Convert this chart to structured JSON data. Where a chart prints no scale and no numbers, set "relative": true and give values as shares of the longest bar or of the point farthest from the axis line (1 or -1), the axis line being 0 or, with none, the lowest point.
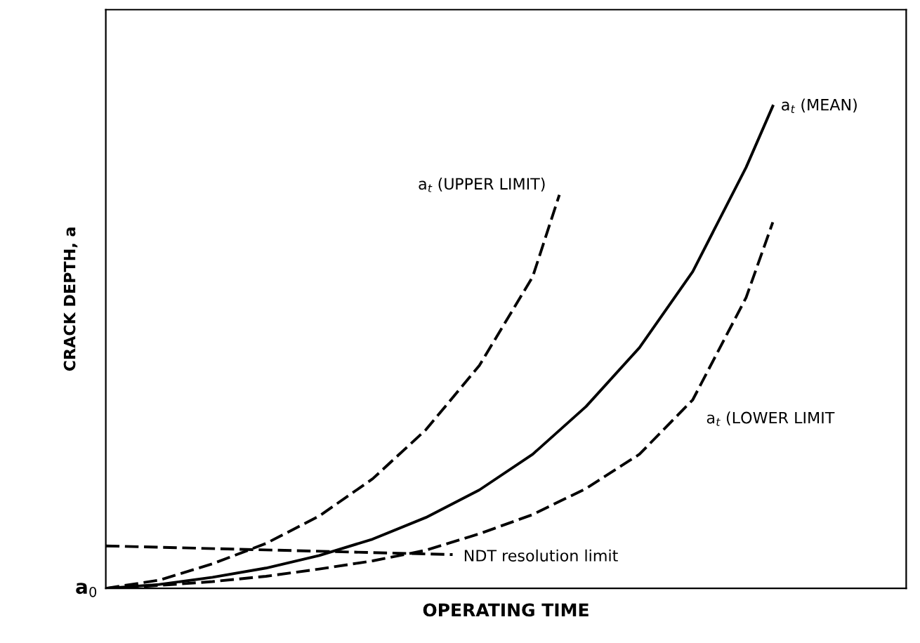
{
  "chart_data": {
    "type": "line",
    "xlabel": "OPERATING TIME",
    "ylabel": "CRACK DEPTH, a",
    "relative": true,
    "categories": [
      null,
      null,
      null,
      null,
      null,
      null,
      null,
      null,
      null,
      null,
      null,
      null,
      null,
      null,
      null,
      null,
      null,
      null,
      null,
      null,
      null,
      null,
      null,
      null,
      null,
      null,
      null,
      null
    ],
    "series": [
      {
        "name": "a$_{t}$ (MEAN)",
        "color": "#000000",
        "line_style": "solid",
        "values": [
          0,
          null,
          0.008,
          null,
          0.023,
          null,
          0.042,
          null,
          0.068,
          null,
          0.102,
          null,
          0.147,
          null,
          0.204,
          null,
          0.278,
          null,
          0.377,
          null,
          0.499,
          null,
          0.657,
          null,
          0.873,
          1.0,
          null,
          null
        ]
      },
      {
        "name": "a$_{t}$ (UPPER LIMIT)",
        "color": "#000000",
        "line_style": "dashed",
        "values": [
          0,
          null,
          0.017,
          null,
          0.051,
          null,
          0.093,
          null,
          0.15,
          null,
          0.227,
          null,
          0.329,
          null,
          0.462,
          null,
          0.646,
          0.816,
          null,
          null,
          null,
          null,
          null,
          null,
          null,
          null,
          null,
          null
        ]
      },
      {
        "name": "a$_{t}$ (LOWER LIMIT",
        "color": "#000000",
        "line_style": "dashed",
        "values": [
          0,
          null,
          0.006,
          null,
          0.014,
          null,
          0.025,
          null,
          0.04,
          null,
          0.057,
          null,
          0.079,
          null,
          0.113,
          null,
          0.153,
          null,
          0.207,
          null,
          0.278,
          null,
          0.391,
          null,
          0.603,
          0.759,
          null,
          null
        ]
      },
      {
        "name": "NDT resolution limit",
        "color": "#000000",
        "line_style": "dashed",
        "values": [
          0.088,
          null,
          null,
          null,
          null,
          null,
          null,
          null,
          null,
          null,
          null,
          null,
          null,
          0.07,
          null,
          null,
          null,
          null,
          null,
          null,
          null,
          null,
          null,
          null,
          null,
          null,
          null,
          null
        ]
      }
    ],
    "annotations": [
      "a$_{0}$"
    ]
  }
}
